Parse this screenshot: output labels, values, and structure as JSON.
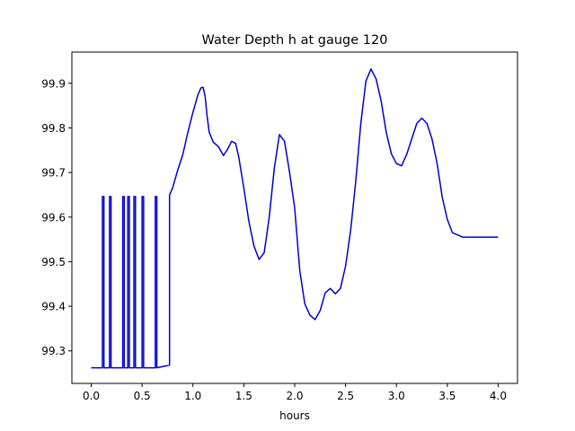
{
  "chart_data": {
    "type": "line",
    "title": "Water Depth h at gauge 120",
    "xlabel": "hours",
    "ylabel": "",
    "xlim": [
      -0.19,
      4.19
    ],
    "ylim": [
      99.227,
      99.97
    ],
    "grid": false,
    "x_ticks": [
      0.0,
      0.5,
      1.0,
      1.5,
      2.0,
      2.5,
      3.0,
      3.5,
      4.0
    ],
    "x_tick_labels": [
      "0.0",
      "0.5",
      "1.0",
      "1.5",
      "2.0",
      "2.5",
      "3.0",
      "3.5",
      "4.0"
    ],
    "y_ticks": [
      99.3,
      99.4,
      99.5,
      99.6,
      99.7,
      99.8,
      99.9
    ],
    "y_tick_labels": [
      "99.3",
      "99.4",
      "99.5",
      "99.6",
      "99.7",
      "99.8",
      "99.9"
    ],
    "series": [
      {
        "color": "#0000cc",
        "x": [
          0.0,
          0.11,
          0.11,
          0.125,
          0.125,
          0.18,
          0.18,
          0.195,
          0.195,
          0.31,
          0.31,
          0.325,
          0.325,
          0.36,
          0.36,
          0.375,
          0.375,
          0.42,
          0.42,
          0.435,
          0.435,
          0.5,
          0.5,
          0.515,
          0.515,
          0.63,
          0.63,
          0.645,
          0.645,
          0.77,
          0.77,
          0.8,
          0.85,
          0.9,
          0.95,
          1.0,
          1.05,
          1.08,
          1.1,
          1.12,
          1.14,
          1.16,
          1.2,
          1.25,
          1.3,
          1.34,
          1.38,
          1.42,
          1.45,
          1.5,
          1.55,
          1.6,
          1.65,
          1.7,
          1.75,
          1.8,
          1.85,
          1.9,
          1.95,
          2.0,
          2.05,
          2.1,
          2.15,
          2.2,
          2.25,
          2.3,
          2.35,
          2.4,
          2.45,
          2.5,
          2.55,
          2.6,
          2.65,
          2.7,
          2.75,
          2.8,
          2.85,
          2.9,
          2.95,
          3.0,
          3.05,
          3.1,
          3.15,
          3.2,
          3.25,
          3.3,
          3.35,
          3.4,
          3.45,
          3.5,
          3.55,
          3.6,
          3.65,
          3.7,
          3.75,
          3.8,
          3.85,
          3.9,
          3.95,
          4.0
        ],
        "y": [
          99.262,
          99.262,
          99.646,
          99.646,
          99.262,
          99.262,
          99.646,
          99.646,
          99.262,
          99.262,
          99.646,
          99.646,
          99.262,
          99.262,
          99.646,
          99.646,
          99.262,
          99.262,
          99.646,
          99.646,
          99.262,
          99.262,
          99.646,
          99.646,
          99.262,
          99.262,
          99.646,
          99.646,
          99.262,
          99.268,
          99.65,
          99.665,
          99.705,
          99.74,
          99.79,
          99.835,
          99.875,
          99.89,
          99.891,
          99.87,
          99.825,
          99.79,
          99.768,
          99.758,
          99.738,
          99.752,
          99.77,
          99.765,
          99.735,
          99.665,
          99.59,
          99.535,
          99.505,
          99.52,
          99.6,
          99.71,
          99.785,
          99.77,
          99.7,
          99.62,
          99.48,
          99.405,
          99.38,
          99.37,
          99.39,
          99.43,
          99.44,
          99.428,
          99.44,
          99.49,
          99.57,
          99.68,
          99.81,
          99.905,
          99.932,
          99.91,
          99.86,
          99.79,
          99.742,
          99.72,
          99.715,
          99.74,
          99.775,
          99.81,
          99.822,
          99.81,
          99.775,
          99.72,
          99.645,
          99.595,
          99.565,
          99.56,
          99.555,
          99.555,
          99.555,
          99.555,
          99.555,
          99.555,
          99.555,
          99.555
        ]
      }
    ]
  }
}
